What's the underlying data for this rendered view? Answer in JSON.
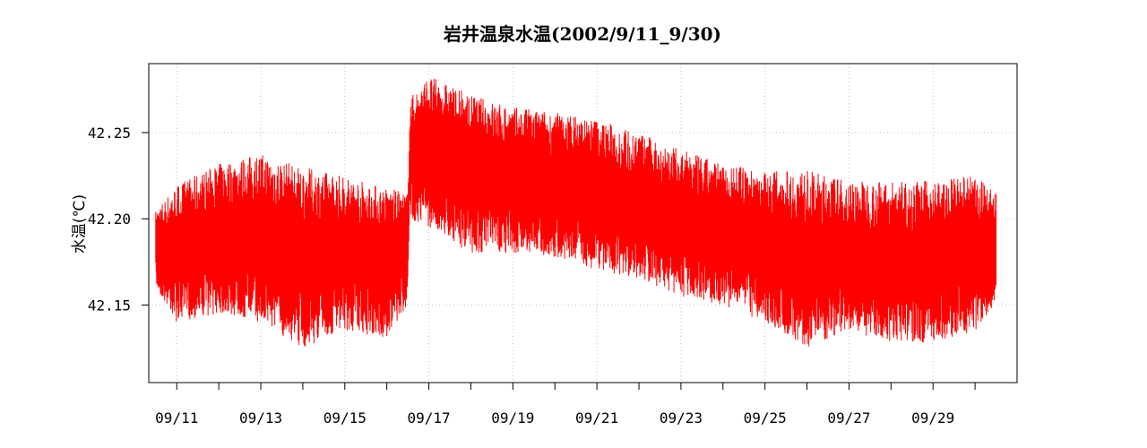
{
  "chart_data": {
    "type": "line",
    "title": "岩井温泉水温(2002/9/11_9/30)",
    "xlabel": "",
    "ylabel": "水温(℃)",
    "series": [
      {
        "color": "#ff0000",
        "x_start": "2002-09-10 12:00",
        "x_end": "2002-09-30 12:00",
        "envelope": [
          {
            "x": "2002-09-10 12:00",
            "min": 42.16,
            "max": 42.205
          },
          {
            "x": "2002-09-11 00:00",
            "min": 42.14,
            "max": 42.22
          },
          {
            "x": "2002-09-12 00:00",
            "min": 42.145,
            "max": 42.232
          },
          {
            "x": "2002-09-13 00:00",
            "min": 42.14,
            "max": 42.238
          },
          {
            "x": "2002-09-14 00:00",
            "min": 42.125,
            "max": 42.23
          },
          {
            "x": "2002-09-15 00:00",
            "min": 42.135,
            "max": 42.225
          },
          {
            "x": "2002-09-16 00:00",
            "min": 42.13,
            "max": 42.218
          },
          {
            "x": "2002-09-16 12:00",
            "min": 42.15,
            "max": 42.215
          },
          {
            "x": "2002-09-16 13:00",
            "min": 42.2,
            "max": 42.27
          },
          {
            "x": "2002-09-17 00:00",
            "min": 42.195,
            "max": 42.283
          },
          {
            "x": "2002-09-18 00:00",
            "min": 42.18,
            "max": 42.272
          },
          {
            "x": "2002-09-19 00:00",
            "min": 42.18,
            "max": 42.265
          },
          {
            "x": "2002-09-20 00:00",
            "min": 42.178,
            "max": 42.262
          },
          {
            "x": "2002-09-21 00:00",
            "min": 42.17,
            "max": 42.258
          },
          {
            "x": "2002-09-22 00:00",
            "min": 42.165,
            "max": 42.25
          },
          {
            "x": "2002-09-23 00:00",
            "min": 42.155,
            "max": 42.24
          },
          {
            "x": "2002-09-24 00:00",
            "min": 42.15,
            "max": 42.232
          },
          {
            "x": "2002-09-25 00:00",
            "min": 42.14,
            "max": 42.228
          },
          {
            "x": "2002-09-26 00:00",
            "min": 42.125,
            "max": 42.228
          },
          {
            "x": "2002-09-27 00:00",
            "min": 42.135,
            "max": 42.222
          },
          {
            "x": "2002-09-28 00:00",
            "min": 42.128,
            "max": 42.222
          },
          {
            "x": "2002-09-29 00:00",
            "min": 42.128,
            "max": 42.222
          },
          {
            "x": "2002-09-30 00:00",
            "min": 42.135,
            "max": 42.225
          },
          {
            "x": "2002-09-30 12:00",
            "min": 42.15,
            "max": 42.215
          }
        ]
      }
    ],
    "x_range": [
      "2002-09-10 08:00",
      "2002-10-01 00:00"
    ],
    "x_ticks": [
      "2002-09-11",
      "2002-09-12",
      "2002-09-13",
      "2002-09-14",
      "2002-09-15",
      "2002-09-16",
      "2002-09-17",
      "2002-09-18",
      "2002-09-19",
      "2002-09-20",
      "2002-09-21",
      "2002-09-22",
      "2002-09-23",
      "2002-09-24",
      "2002-09-25",
      "2002-09-26",
      "2002-09-27",
      "2002-09-28",
      "2002-09-29",
      "2002-09-30"
    ],
    "x_tick_labels": [
      "09/11",
      "09/13",
      "09/15",
      "09/17",
      "09/19",
      "09/21",
      "09/23",
      "09/25",
      "09/27",
      "09/29"
    ],
    "y_range": [
      42.105,
      42.29
    ],
    "y_ticks": [
      42.15,
      42.2,
      42.25
    ],
    "y_tick_labels": [
      "42.15",
      "42.20",
      "42.25"
    ],
    "grid": true
  }
}
